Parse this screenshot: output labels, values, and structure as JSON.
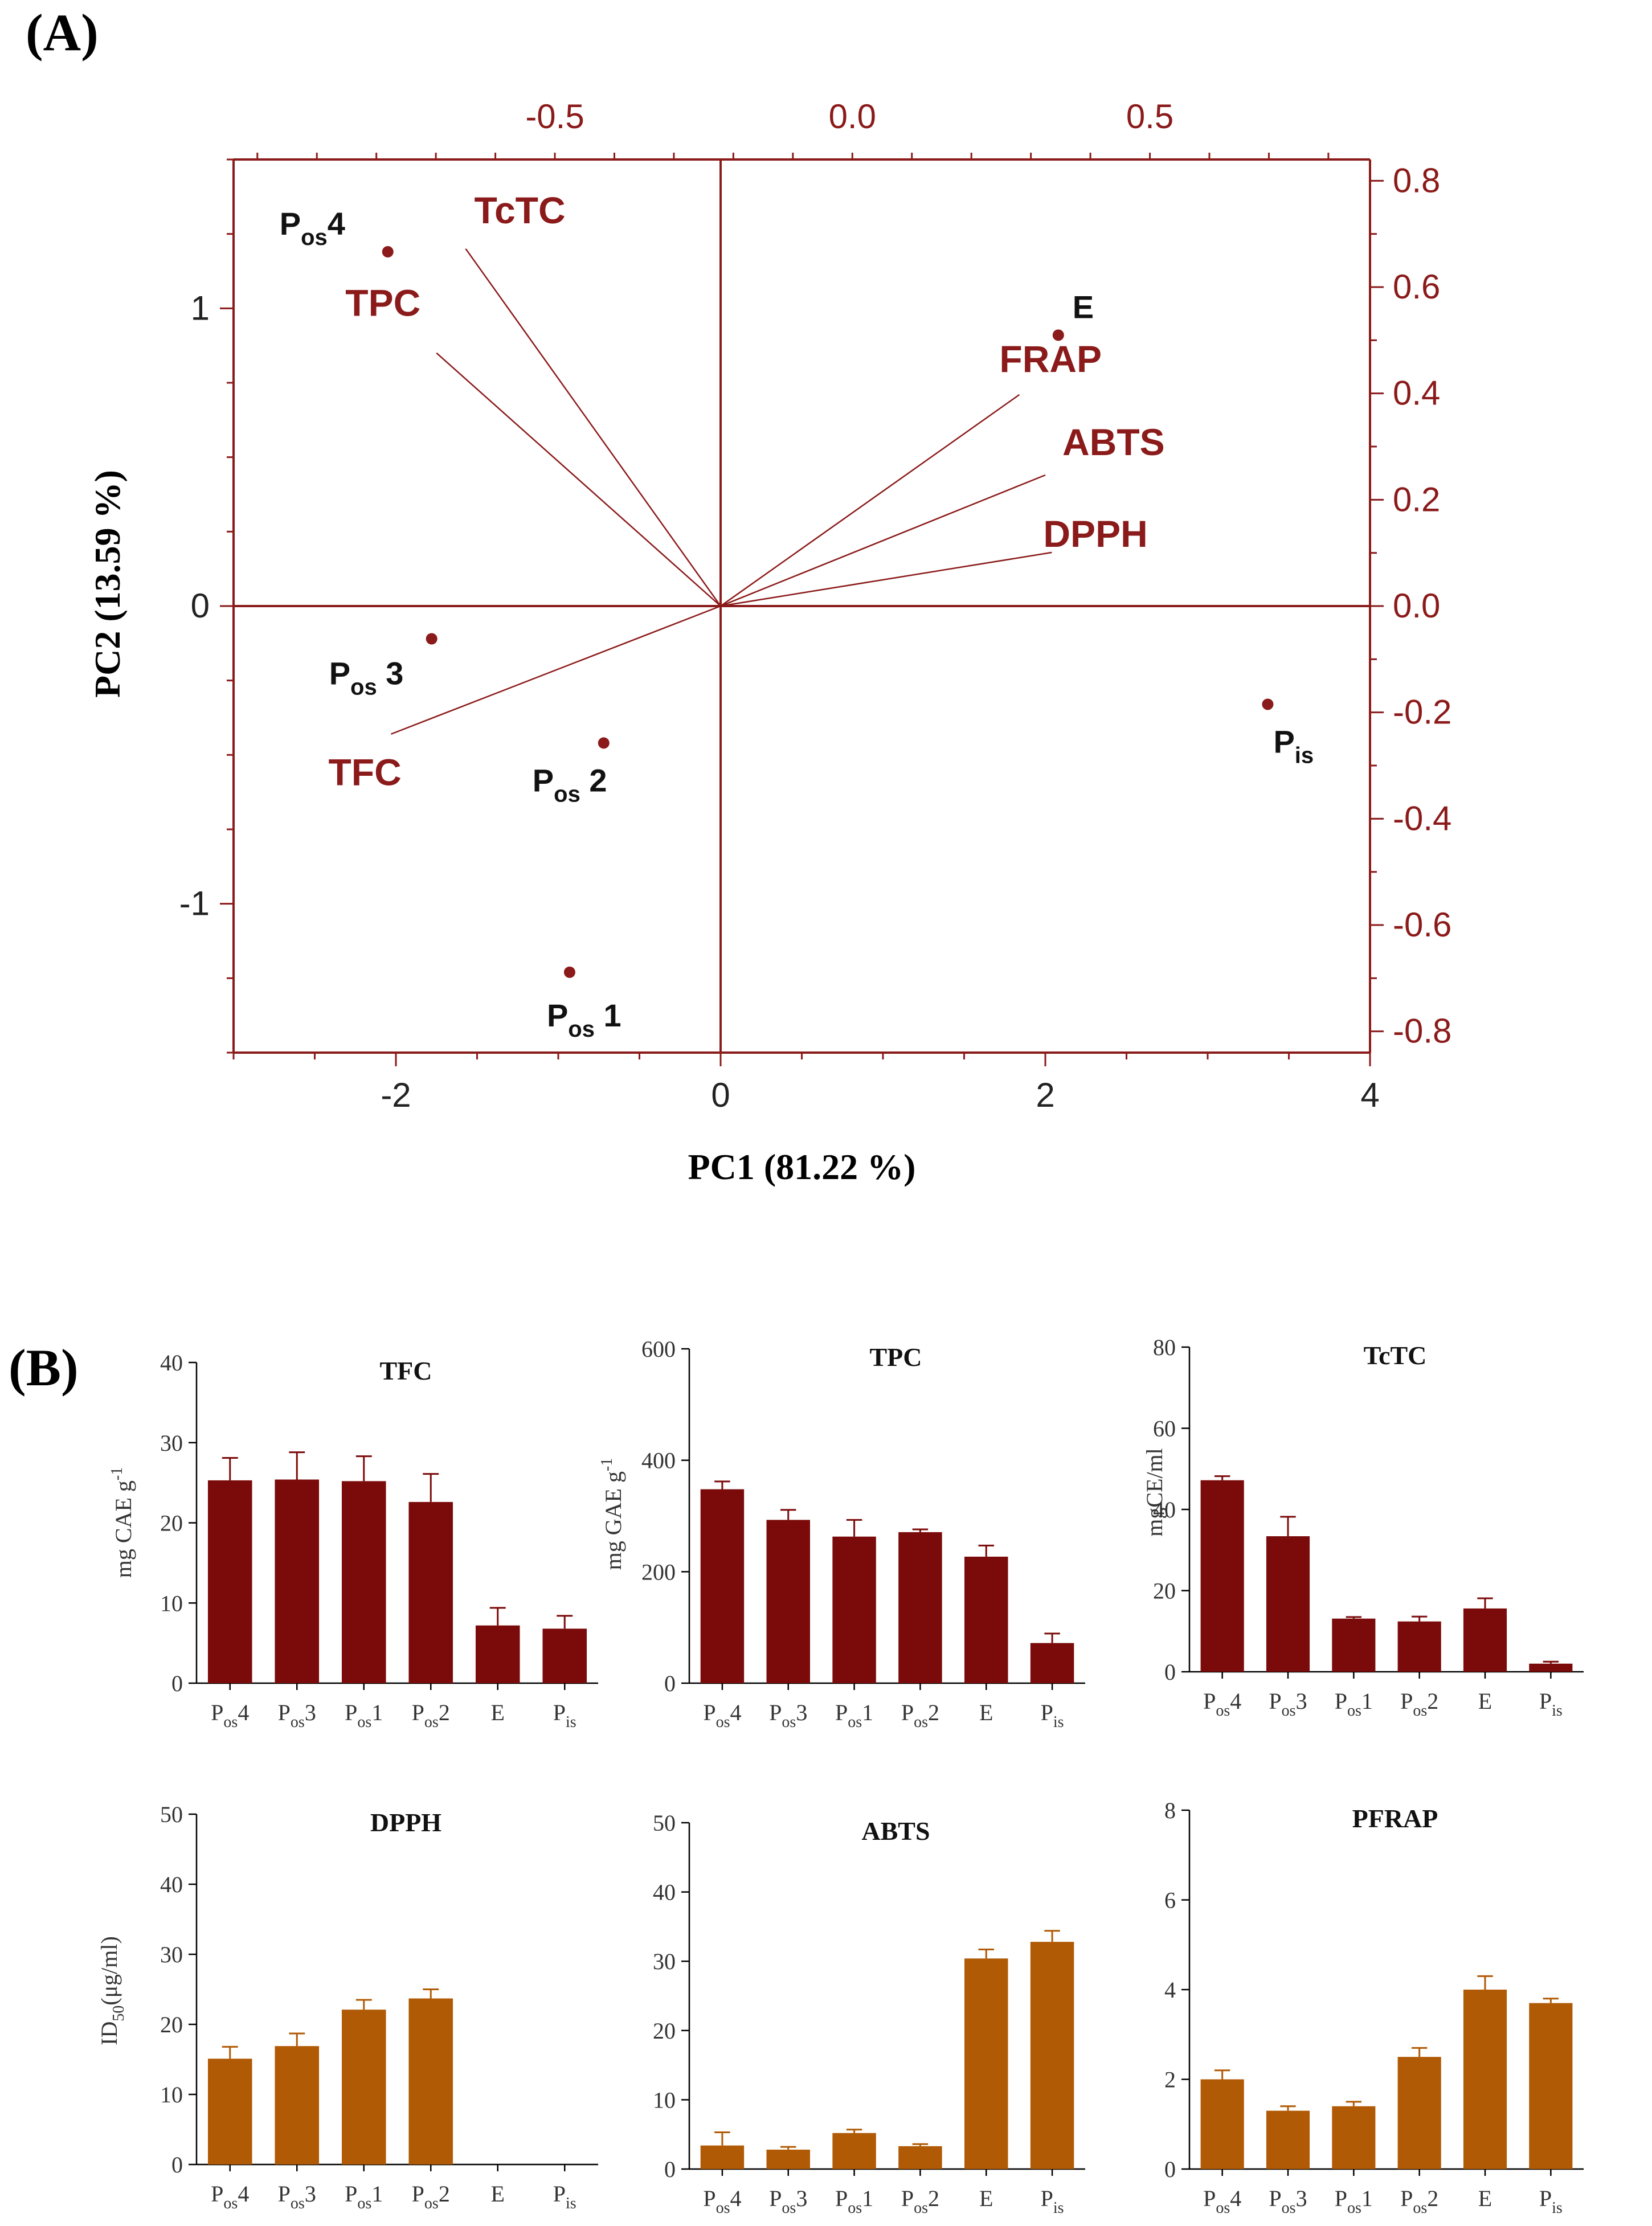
{
  "panel_a_label": "(A)",
  "panel_b_label": "(B)",
  "colors": {
    "biplot": "#8B1A1A",
    "bar_dark": "#7B0A0A",
    "bar_orange": "#B05A05",
    "axis_black": "#000000"
  },
  "chart_data": [
    {
      "id": "biplot",
      "type": "scatter",
      "title": "",
      "xlabel": "PC1 (81.22 %)",
      "ylabel": "PC2 (13.59 %)",
      "xlim": [
        -3,
        4
      ],
      "ylim": [
        -1.5,
        1.5
      ],
      "x_ticks": [
        "-2",
        "0",
        "2",
        "4"
      ],
      "y_ticks": [
        "-1",
        "0",
        "1"
      ],
      "secondary_x": {
        "lim": [
          -1.04,
          0.87
        ],
        "ticks": [
          "-0.5",
          "0.0",
          "0.5"
        ]
      },
      "secondary_y": {
        "lim": [
          -0.84,
          0.84
        ],
        "ticks": [
          "0.8",
          "0.6",
          "0.4",
          "0.2",
          "0.0",
          "-0.2",
          "-0.4",
          "-0.6",
          "-0.8"
        ]
      },
      "points": [
        {
          "main": "P",
          "sub": "os",
          "after": "4",
          "x": -2.05,
          "y": 1.19
        },
        {
          "main": "P",
          "sub": "os",
          "after": " 3",
          "x": -1.78,
          "y": -0.11
        },
        {
          "main": "P",
          "sub": "os",
          "after": " 2",
          "x": -0.72,
          "y": -0.46
        },
        {
          "main": "P",
          "sub": "os",
          "after": " 1",
          "x": -0.93,
          "y": -1.23
        },
        {
          "main": "E",
          "sub": "",
          "after": "",
          "x": 2.08,
          "y": 0.91
        },
        {
          "main": "P",
          "sub": "is",
          "after": "",
          "x": 3.37,
          "y": -0.33
        }
      ],
      "loadings": [
        {
          "name": "TcTC",
          "x": -1.57,
          "y": 1.2
        },
        {
          "name": "TPC",
          "x": -1.75,
          "y": 0.85
        },
        {
          "name": "FRAP",
          "x": 1.84,
          "y": 0.71
        },
        {
          "name": "ABTS",
          "x": 2.0,
          "y": 0.44
        },
        {
          "name": "DPPH",
          "x": 2.04,
          "y": 0.18
        },
        {
          "name": "TFC",
          "x": -2.03,
          "y": -0.43
        }
      ]
    },
    {
      "id": "tfc",
      "type": "bar",
      "title": "TFC",
      "ylabel": "mg CAE g",
      "ylabel_sup": "-1",
      "ylim": [
        0,
        40
      ],
      "yticks": [
        "0",
        "10",
        "20",
        "30",
        "40"
      ],
      "categories": [
        [
          "P",
          "os",
          "4"
        ],
        [
          "P",
          "os",
          "3"
        ],
        [
          "P",
          "os",
          "1"
        ],
        [
          "P",
          "os",
          "2"
        ],
        [
          "E",
          "",
          ""
        ],
        [
          "P",
          "is",
          ""
        ]
      ],
      "values": [
        25.3,
        25.4,
        25.2,
        22.6,
        7.2,
        6.8
      ],
      "errors": [
        2.8,
        3.4,
        3.1,
        3.5,
        2.2,
        1.6
      ]
    },
    {
      "id": "tpc",
      "type": "bar",
      "title": "TPC",
      "ylabel": "mg GAE g",
      "ylabel_sup": "-1",
      "ylim": [
        0,
        600
      ],
      "yticks": [
        "0",
        "200",
        "400",
        "600"
      ],
      "categories": [
        [
          "P",
          "os",
          "4"
        ],
        [
          "P",
          "os",
          "3"
        ],
        [
          "P",
          "os",
          "1"
        ],
        [
          "P",
          "os",
          "2"
        ],
        [
          "E",
          "",
          ""
        ],
        [
          "P",
          "is",
          ""
        ]
      ],
      "values": [
        348,
        293,
        263,
        271,
        227,
        72
      ],
      "errors": [
        14,
        18,
        30,
        5,
        20,
        17
      ]
    },
    {
      "id": "tctc",
      "type": "bar",
      "title": "TcTC",
      "ylabel": "mgCE/ml",
      "ylabel_sup": "",
      "ylim": [
        0,
        80
      ],
      "yticks": [
        "0",
        "20",
        "40",
        "60",
        "80"
      ],
      "categories": [
        [
          "P",
          "os",
          "4"
        ],
        [
          "P",
          "os",
          "3"
        ],
        [
          "P",
          "os",
          "1"
        ],
        [
          "P",
          "os",
          "2"
        ],
        [
          "E",
          "",
          ""
        ],
        [
          "P",
          "is",
          ""
        ]
      ],
      "values": [
        47.2,
        33.4,
        13.1,
        12.4,
        15.6,
        2.0
      ],
      "errors": [
        1.0,
        4.8,
        0.4,
        1.2,
        2.5,
        0.5
      ]
    },
    {
      "id": "dpph",
      "type": "bar",
      "title": "DPPH",
      "ylabel": "ID",
      "ylabel_sub": "50",
      "ylabel_after": "(μg/ml)",
      "ylim": [
        0,
        50
      ],
      "yticks": [
        "0",
        "10",
        "20",
        "30",
        "40",
        "50"
      ],
      "categories": [
        [
          "P",
          "os",
          "4"
        ],
        [
          "P",
          "os",
          "3"
        ],
        [
          "P",
          "os",
          "1"
        ],
        [
          "P",
          "os",
          "2"
        ],
        [
          "E",
          "",
          ""
        ],
        [
          "P",
          "is",
          ""
        ]
      ],
      "values": [
        15.1,
        16.9,
        22.1,
        23.7,
        0,
        0
      ],
      "errors": [
        1.7,
        1.8,
        1.4,
        1.3,
        0,
        0
      ]
    },
    {
      "id": "abts",
      "type": "bar",
      "title": "ABTS",
      "ylabel": "",
      "ylabel_sup": "",
      "ylim": [
        0,
        50
      ],
      "yticks": [
        "0",
        "10",
        "20",
        "30",
        "40",
        "50"
      ],
      "categories": [
        [
          "P",
          "os",
          "4"
        ],
        [
          "P",
          "os",
          "3"
        ],
        [
          "P",
          "os",
          "1"
        ],
        [
          "P",
          "os",
          "2"
        ],
        [
          "E",
          "",
          ""
        ],
        [
          "P",
          "is",
          ""
        ]
      ],
      "values": [
        3.4,
        2.8,
        5.2,
        3.3,
        30.4,
        32.8
      ],
      "errors": [
        1.9,
        0.4,
        0.5,
        0.3,
        1.3,
        1.6
      ]
    },
    {
      "id": "pfrap",
      "type": "bar",
      "title": "PFRAP",
      "ylabel": "",
      "ylabel_sup": "",
      "ylim": [
        0,
        8
      ],
      "yticks": [
        "0",
        "2",
        "4",
        "6",
        "8"
      ],
      "categories": [
        [
          "P",
          "os",
          "4"
        ],
        [
          "P",
          "os",
          "3"
        ],
        [
          "P",
          "os",
          "1"
        ],
        [
          "P",
          "os",
          "2"
        ],
        [
          "E",
          "",
          ""
        ],
        [
          "P",
          "is",
          ""
        ]
      ],
      "values": [
        2.0,
        1.3,
        1.4,
        2.5,
        4.0,
        3.7
      ],
      "errors": [
        0.2,
        0.1,
        0.1,
        0.2,
        0.3,
        0.1
      ]
    }
  ]
}
